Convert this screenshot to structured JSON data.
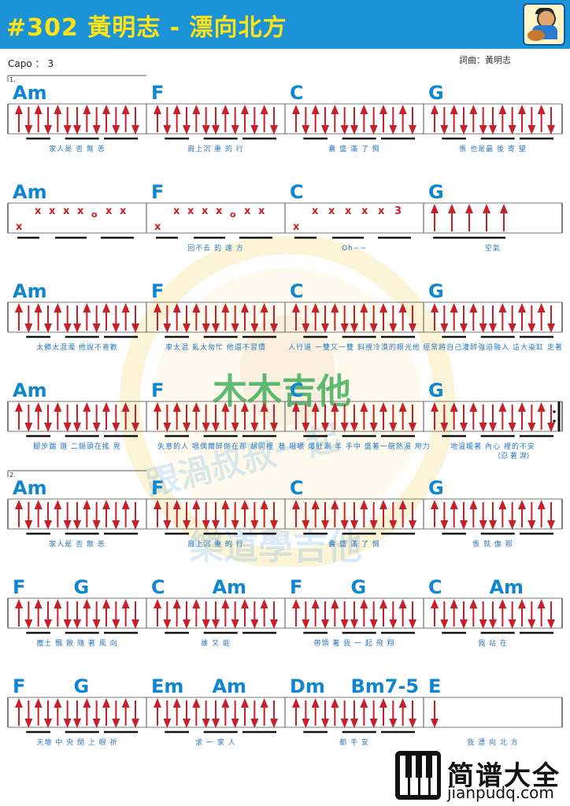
{
  "header": {
    "title": "#302 黃明志 - 漂向北方"
  },
  "capo": "Capo ： 3",
  "credit": "詞曲：黃明志",
  "watermark": {
    "text": "木木吉他",
    "arc_text": "跟渦叔叔一起",
    "arc_text_2": "樂道學吉他"
  },
  "site": {
    "name": "简谱大全",
    "url": "jianpudq.com"
  },
  "colors": {
    "header_bg": "#1b93d6",
    "title": "#ffe312",
    "chord": "#0f86d2",
    "arrow": "#c8202a",
    "x_mark": "#c8202a",
    "lyric": "#2a79c0"
  },
  "rows": [
    {
      "ending_label": "1.",
      "measures": [
        {
          "chords": [
            "Am"
          ],
          "lyric": "家人是 否 無 恙",
          "pattern": "strum"
        },
        {
          "chords": [
            "F"
          ],
          "lyric": "肩上沉 重 的 行",
          "pattern": "strum"
        },
        {
          "chords": [
            "C"
          ],
          "lyric": "囊 盛 滿 了 惆",
          "pattern": "strum"
        },
        {
          "chords": [
            "G"
          ],
          "lyric": "悵 也是最 後 寄 望",
          "pattern": "strum"
        }
      ]
    },
    {
      "ending_label": "",
      "measures": [
        {
          "chords": [
            "Am"
          ],
          "lyric": "",
          "pattern": "xpick",
          "marks": [
            "x",
            "x",
            "x",
            "x",
            "o",
            "x",
            "x"
          ]
        },
        {
          "chords": [
            "F"
          ],
          "lyric": "回不去 的 遠 方",
          "pattern": "xpick",
          "marks": [
            "x",
            "x",
            "x",
            "x",
            "o",
            "x",
            "x"
          ]
        },
        {
          "chords": [
            "C"
          ],
          "lyric": "Oh~~",
          "pattern": "xpick",
          "marks": [
            "x",
            "x",
            "x",
            "x",
            "x",
            "3"
          ]
        },
        {
          "chords": [
            "G"
          ],
          "lyric": "空氣",
          "pattern": "up4"
        }
      ]
    },
    {
      "ending_label": "",
      "measures": [
        {
          "chords": [
            "Am"
          ],
          "lyric": "太髒太混濁 他說不喜歡",
          "pattern": "strum"
        },
        {
          "chords": [
            "F"
          ],
          "lyric": "車太混 亂太匆忙 他還不習慣",
          "pattern": "strum"
        },
        {
          "chords": [
            "C"
          ],
          "lyric": "人行道 一雙又一雙 斜視冷漠的眼光他",
          "pattern": "strum"
        },
        {
          "chords": [
            "G"
          ],
          "lyric": "經常將自己灌醉強迫融入 這大染缸 走著",
          "pattern": "strum"
        }
      ]
    },
    {
      "ending_label": "",
      "measures": [
        {
          "chords": [
            "Am"
          ],
          "lyric": "腳步踹 蹭 二鍋頭在搖 晃",
          "pattern": "strum"
        },
        {
          "chords": [
            "F"
          ],
          "lyric": "失意的人 唱偶爾醉倒在那 胡同裡",
          "pattern": "strum"
        },
        {
          "chords": [
            "C"
          ],
          "lyric": "巷 咀嚼 爆肚涮 羊 手中 盛著一碗熱湯 用力",
          "pattern": "strum"
        },
        {
          "chords": [
            "G"
          ],
          "lyric": "地溫暖著 內心 裡的不安",
          "lyric2": "(忍 著 淚)",
          "pattern": "strum",
          "repeat_end": true
        }
      ]
    },
    {
      "ending_label": "2.",
      "measures": [
        {
          "chords": [
            "Am"
          ],
          "lyric": "家人是 否 無 恙",
          "pattern": "strum"
        },
        {
          "chords": [
            "F"
          ],
          "lyric": "肩上沉 重 的 行",
          "pattern": "strum"
        },
        {
          "chords": [
            "C"
          ],
          "lyric": "囊 盛 滿 了 惆",
          "pattern": "strum"
        },
        {
          "chords": [
            "G"
          ],
          "lyric": "悵 就 像 那",
          "pattern": "strum"
        }
      ]
    },
    {
      "ending_label": "",
      "measures": [
        {
          "chords": [
            "F",
            "G"
          ],
          "lyric": "塵土 飄 散 隨 著 風 向",
          "pattern": "strum"
        },
        {
          "chords": [
            "C",
            "Am"
          ],
          "lyric": "誰 又 能",
          "pattern": "strum"
        },
        {
          "chords": [
            "F",
            "G"
          ],
          "lyric": "帶領 著 我 一 起 飛 翔",
          "pattern": "strum"
        },
        {
          "chords": [
            "C",
            "Am"
          ],
          "lyric": "我 站 在",
          "pattern": "strum"
        }
      ]
    },
    {
      "ending_label": "",
      "measures": [
        {
          "chords": [
            "F",
            "G"
          ],
          "lyric": "天壇 中 央 閉 上 眼 祈",
          "pattern": "strum"
        },
        {
          "chords": [
            "Em",
            "Am"
          ],
          "lyric": "求 一 家 人",
          "pattern": "strum"
        },
        {
          "chords": [
            "Dm",
            "Bm7-5"
          ],
          "lyric": "都 平 安",
          "pattern": "strum"
        },
        {
          "chords": [
            "E"
          ],
          "lyric": "我 漂 向 北 方",
          "pattern": "single"
        }
      ]
    }
  ]
}
